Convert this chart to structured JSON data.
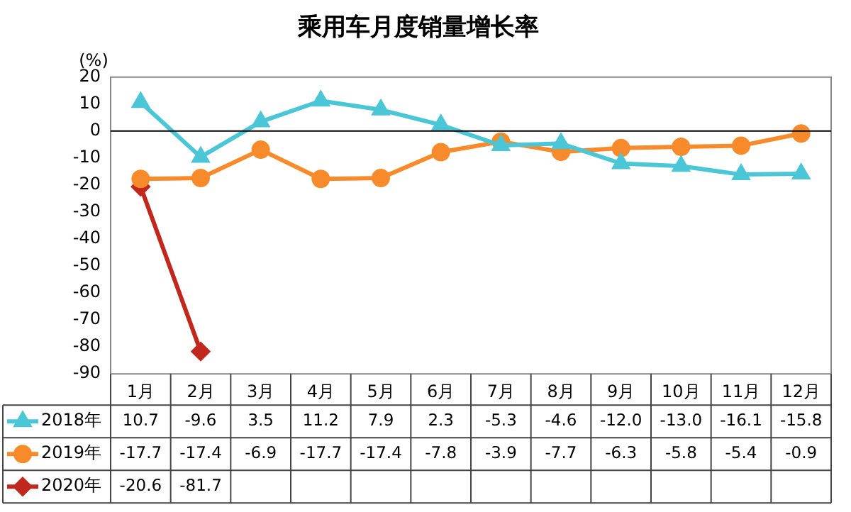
{
  "chart_data": {
    "type": "line",
    "title": "乘用车月度销量增长率",
    "ylabel": "(%)",
    "categories": [
      "1月",
      "2月",
      "3月",
      "4月",
      "5月",
      "6月",
      "7月",
      "8月",
      "9月",
      "10月",
      "11月",
      "12月"
    ],
    "ylim": [
      -90,
      20
    ],
    "yticks": [
      20,
      10,
      0,
      -10,
      -20,
      -30,
      -40,
      -50,
      -60,
      -70,
      -80,
      -90
    ],
    "grid": false,
    "legend": "bottom",
    "ref_lines": [
      {
        "axis": "y",
        "value": 0,
        "color": "#000000"
      }
    ],
    "series": [
      {
        "name": "2018年",
        "color": "#4bc6d6",
        "marker": "triangle",
        "values": [
          10.7,
          -9.6,
          3.5,
          11.2,
          7.9,
          2.3,
          -5.3,
          -4.6,
          -12.0,
          -13.0,
          -16.1,
          -15.8
        ],
        "value_labels": [
          "10.7",
          "-9.6",
          "3.5",
          "11.2",
          "7.9",
          "2.3",
          "-5.3",
          "-4.6",
          "-12.0",
          "-13.0",
          "-16.1",
          "-15.8"
        ]
      },
      {
        "name": "2019年",
        "color": "#f78a2a",
        "marker": "circle",
        "values": [
          -17.7,
          -17.4,
          -6.9,
          -17.7,
          -17.4,
          -7.8,
          -3.9,
          -7.7,
          -6.3,
          -5.8,
          -5.4,
          -0.9
        ],
        "value_labels": [
          "-17.7",
          "-17.4",
          "-6.9",
          "-17.7",
          "-17.4",
          "-7.8",
          "-3.9",
          "-7.7",
          "-6.3",
          "-5.8",
          "-5.4",
          "-0.9"
        ]
      },
      {
        "name": "2020年",
        "color": "#c0281e",
        "marker": "diamond",
        "values": [
          -20.6,
          -81.7,
          null,
          null,
          null,
          null,
          null,
          null,
          null,
          null,
          null,
          null
        ],
        "value_labels": [
          "-20.6",
          "-81.7",
          null,
          null,
          null,
          null,
          null,
          null,
          null,
          null,
          null,
          null
        ]
      }
    ]
  }
}
